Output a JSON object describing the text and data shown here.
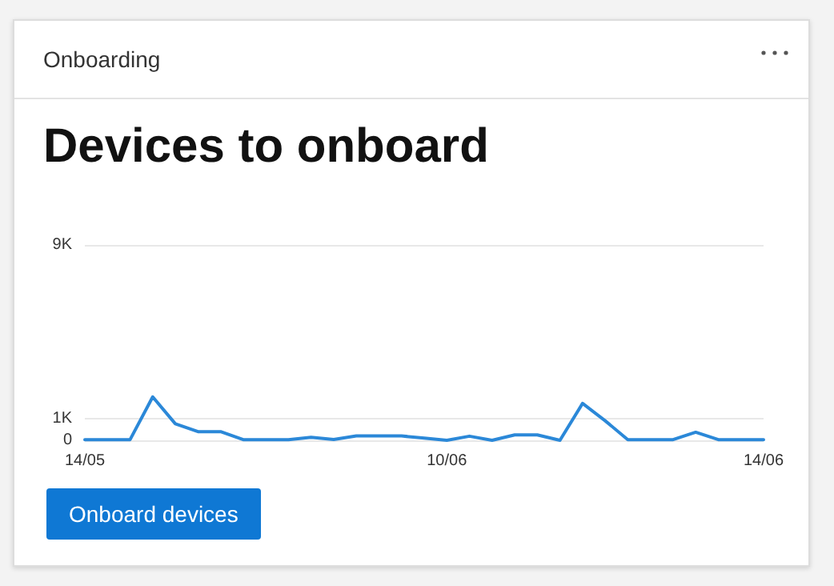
{
  "chart_data": {
    "type": "line",
    "title": "Onboarding",
    "subtitle": "Devices to onboard",
    "annotations": [
      "Onboard devices"
    ],
    "categories": [
      "14/05",
      null,
      null,
      null,
      null,
      null,
      null,
      null,
      null,
      null,
      null,
      null,
      null,
      null,
      null,
      null,
      "10/06",
      null,
      null,
      null,
      null,
      null,
      null,
      null,
      null,
      null,
      null,
      null,
      null,
      null,
      "14/06"
    ],
    "series": [
      {
        "color": "#2b88d8",
        "values": [
          30,
          30,
          30,
          2000,
          760,
          400,
          400,
          30,
          30,
          30,
          140,
          40,
          200,
          200,
          200,
          100,
          0,
          190,
          0,
          250,
          250,
          0,
          1700,
          900,
          30,
          30,
          30,
          370,
          30,
          30,
          30
        ]
      }
    ],
    "ylim": [
      0,
      9000
    ],
    "yticks": [
      0,
      {
        "value": 1000,
        "label": "1K"
      },
      {
        "value": 9000,
        "label": "9K"
      }
    ],
    "grid": "y",
    "marker": "none",
    "line_style": "solid"
  }
}
